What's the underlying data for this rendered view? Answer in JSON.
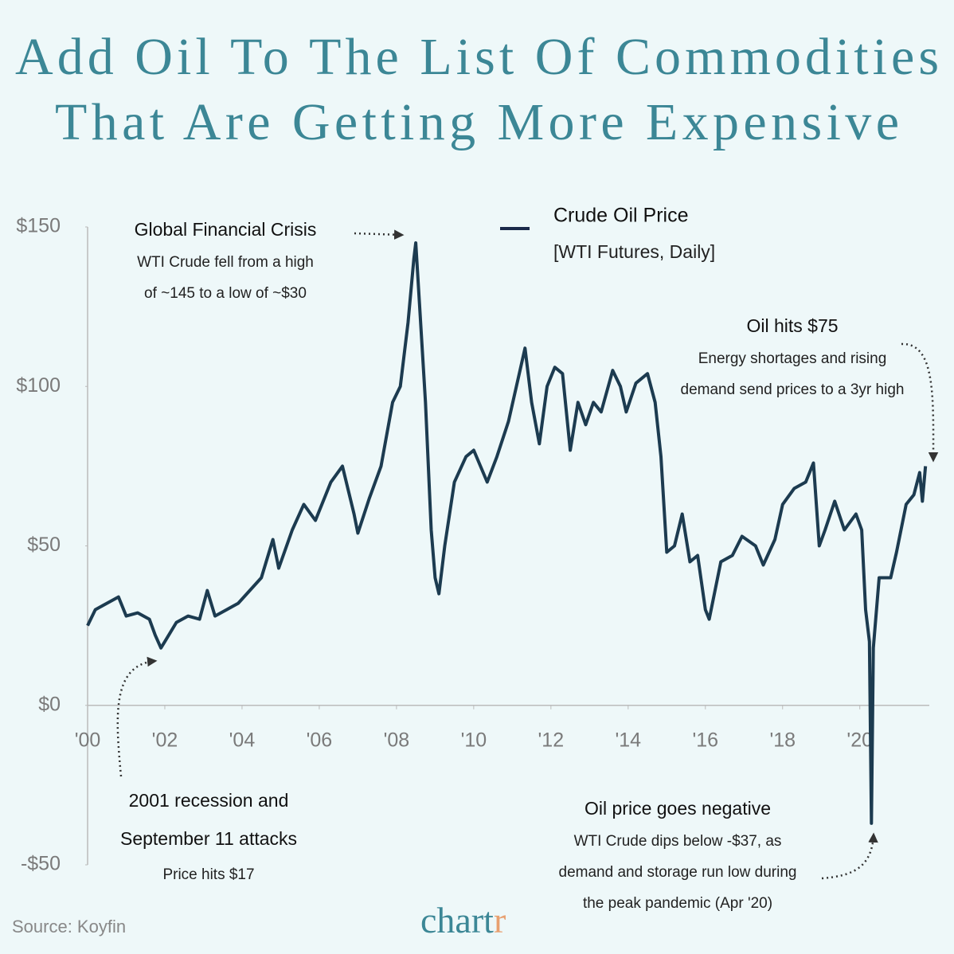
{
  "chart_data": {
    "type": "line",
    "title": [
      "Add Oil To The List Of Commodities",
      "That Are Getting More Expensive"
    ],
    "source": "Source: Koyfin",
    "branding": {
      "text": "chart",
      "accent": "r"
    },
    "legend_note": "[WTI Futures, Daily]",
    "series": [
      {
        "name": "Crude Oil Price",
        "color": "#1c3b50",
        "x": [
          2000.0,
          2000.2,
          2000.5,
          2000.8,
          2001.0,
          2001.3,
          2001.6,
          2001.75,
          2001.9,
          2002.0,
          2002.3,
          2002.6,
          2002.9,
          2003.1,
          2003.3,
          2003.6,
          2003.9,
          2004.2,
          2004.5,
          2004.8,
          2004.95,
          2005.3,
          2005.6,
          2005.9,
          2006.3,
          2006.6,
          2006.9,
          2007.0,
          2007.3,
          2007.6,
          2007.9,
          2008.1,
          2008.3,
          2008.45,
          2008.5,
          2008.6,
          2008.75,
          2008.9,
          2009.0,
          2009.1,
          2009.25,
          2009.5,
          2009.8,
          2010.0,
          2010.35,
          2010.6,
          2010.9,
          2011.2,
          2011.33,
          2011.5,
          2011.7,
          2011.9,
          2012.1,
          2012.3,
          2012.5,
          2012.7,
          2012.9,
          2013.1,
          2013.3,
          2013.6,
          2013.8,
          2013.95,
          2014.2,
          2014.5,
          2014.7,
          2014.85,
          2015.0,
          2015.2,
          2015.4,
          2015.6,
          2015.8,
          2016.0,
          2016.1,
          2016.4,
          2016.7,
          2016.95,
          2017.3,
          2017.5,
          2017.8,
          2018.0,
          2018.3,
          2018.6,
          2018.8,
          2018.95,
          2019.1,
          2019.35,
          2019.6,
          2019.9,
          2020.05,
          2020.15,
          2020.25,
          2020.3,
          2020.35,
          2020.5,
          2020.8,
          2020.95,
          2021.2,
          2021.4,
          2021.55,
          2021.62,
          2021.7
        ],
        "values": [
          25,
          30,
          32,
          34,
          28,
          29,
          27,
          22,
          18,
          20,
          26,
          28,
          27,
          36,
          28,
          30,
          32,
          36,
          40,
          52,
          43,
          55,
          63,
          58,
          70,
          75,
          60,
          54,
          65,
          75,
          95,
          100,
          120,
          140,
          145,
          125,
          95,
          55,
          40,
          35,
          50,
          70,
          78,
          80,
          70,
          78,
          89,
          105,
          112,
          95,
          82,
          100,
          106,
          104,
          80,
          95,
          88,
          95,
          92,
          105,
          100,
          92,
          101,
          104,
          95,
          78,
          48,
          50,
          60,
          45,
          47,
          30,
          27,
          45,
          47,
          53,
          50,
          44,
          52,
          63,
          68,
          70,
          76,
          50,
          55,
          64,
          55,
          60,
          55,
          30,
          20,
          -37,
          18,
          40,
          40,
          48,
          63,
          66,
          73,
          64,
          75
        ]
      }
    ],
    "xlim": [
      2000,
      2021.8
    ],
    "xticks": [
      {
        "value": 2000,
        "label": "'00"
      },
      {
        "value": 2002,
        "label": "'02"
      },
      {
        "value": 2004,
        "label": "'04"
      },
      {
        "value": 2006,
        "label": "'06"
      },
      {
        "value": 2008,
        "label": "'08"
      },
      {
        "value": 2010,
        "label": "'10"
      },
      {
        "value": 2012,
        "label": "'12"
      },
      {
        "value": 2014,
        "label": "'14"
      },
      {
        "value": 2016,
        "label": "'16"
      },
      {
        "value": 2018,
        "label": "'18"
      },
      {
        "value": 2020,
        "label": "'20"
      }
    ],
    "ylim": [
      -50,
      150
    ],
    "yticks": [
      {
        "value": 150,
        "label": "$150"
      },
      {
        "value": 100,
        "label": "$100"
      },
      {
        "value": 50,
        "label": "$50"
      },
      {
        "value": 0,
        "label": "$0"
      },
      {
        "value": -50,
        "label": "-$50"
      }
    ],
    "annotations": [
      {
        "title": [
          "Global Financial Crisis"
        ],
        "text": [
          "WTI Crude fell from a high",
          "of ~145 to a low of ~$30"
        ]
      },
      {
        "title": [
          "Oil hits $75"
        ],
        "text": [
          "Energy shortages and rising",
          "demand send prices to a 3yr high"
        ]
      },
      {
        "title": [
          "2001 recession and",
          "September 11 attacks"
        ],
        "text": [
          "Price hits $17"
        ]
      },
      {
        "title": [
          "Oil price goes negative"
        ],
        "text": [
          "WTI Crude dips below -$37, as",
          "demand and storage run low during",
          "the peak pandemic (Apr '20)"
        ]
      }
    ]
  }
}
